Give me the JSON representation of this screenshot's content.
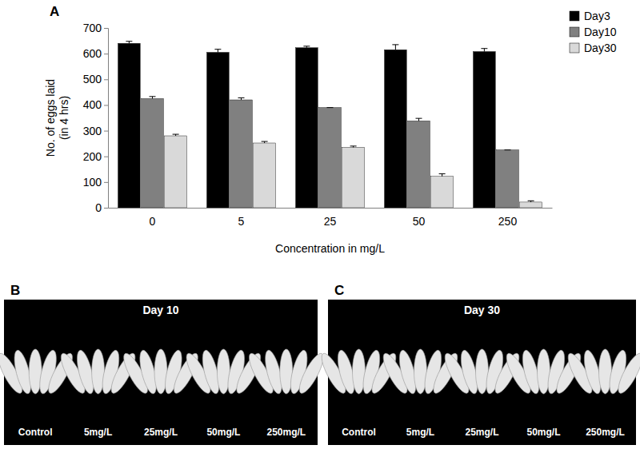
{
  "chart_data": {
    "type": "bar",
    "panel_label": "A",
    "x_label": "Concentration in mg/L",
    "y_label": [
      "No. of eggs laid",
      "(in 4 hrs)"
    ],
    "categories": [
      "0",
      "5",
      "25",
      "50",
      "250"
    ],
    "series": [
      {
        "name": "Day3",
        "color": "#000000",
        "values": [
          640,
          605,
          623,
          615,
          608
        ],
        "errors": [
          8,
          12,
          6,
          20,
          12
        ]
      },
      {
        "name": "Day10",
        "color": "#808080",
        "values": [
          425,
          420,
          390,
          338,
          225
        ],
        "errors": [
          8,
          8,
          0,
          10,
          0
        ]
      },
      {
        "name": "Day30",
        "color": "#d9d9d9",
        "values": [
          280,
          252,
          235,
          122,
          22
        ],
        "errors": [
          6,
          6,
          5,
          10,
          5
        ]
      }
    ],
    "ylim": [
      0,
      700
    ],
    "yticks": [
      0,
      100,
      200,
      300,
      400,
      500,
      600,
      700
    ],
    "grid": false,
    "legend": "top-right"
  },
  "image_panels": [
    {
      "label": "B",
      "title": "Day 10",
      "captions": [
        "Control",
        "5mg/L",
        "25mg/L",
        "50mg/L",
        "250mg/L"
      ]
    },
    {
      "label": "C",
      "title": "Day 30",
      "captions": [
        "Control",
        "5mg/L",
        "25mg/L",
        "50mg/L",
        "250mg/L"
      ]
    }
  ]
}
